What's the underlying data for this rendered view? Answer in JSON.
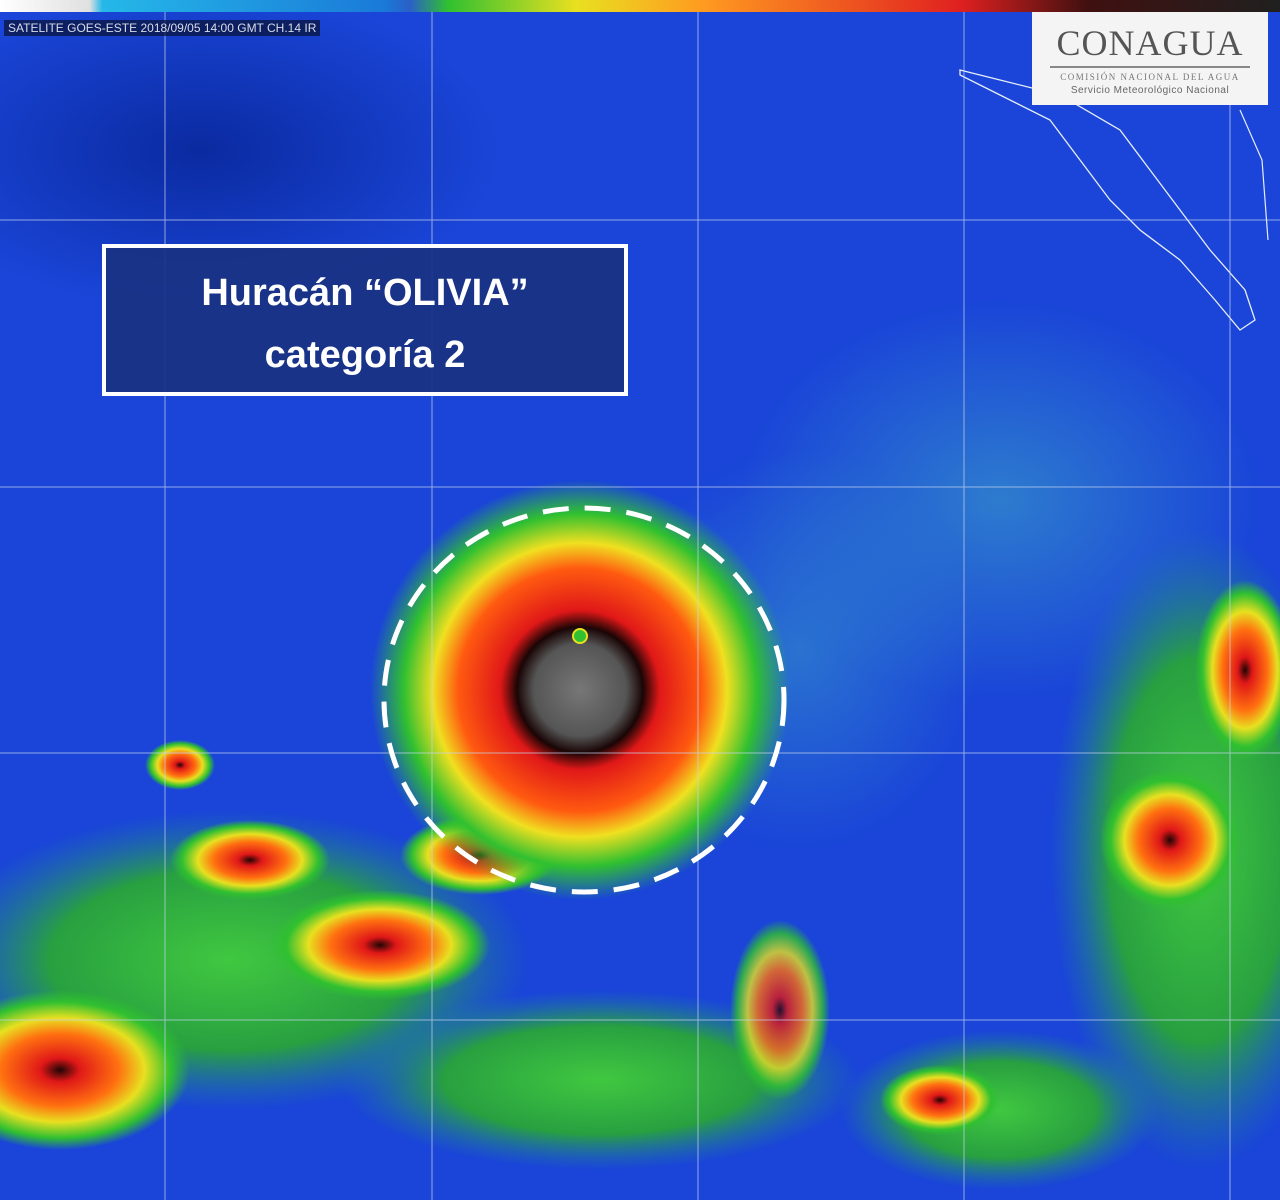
{
  "satellite_label": "SATELITE GOES-ESTE 2018/09/05 14:00 GMT CH.14 IR",
  "logo": {
    "name": "CONAGUA",
    "subtitle": "COMISIÓN NACIONAL DEL AGUA",
    "service": "Servicio Meteorológico Nacional"
  },
  "annotation": {
    "line1": "Huracán “OLIVIA”",
    "line2": "categoría 2"
  },
  "colors": {
    "ocean": "#1a3fd0",
    "cloud_low": "#30c030",
    "cloud_mid": "#e8e020",
    "cloud_high": "#e02020",
    "cloud_top": "#202020"
  }
}
